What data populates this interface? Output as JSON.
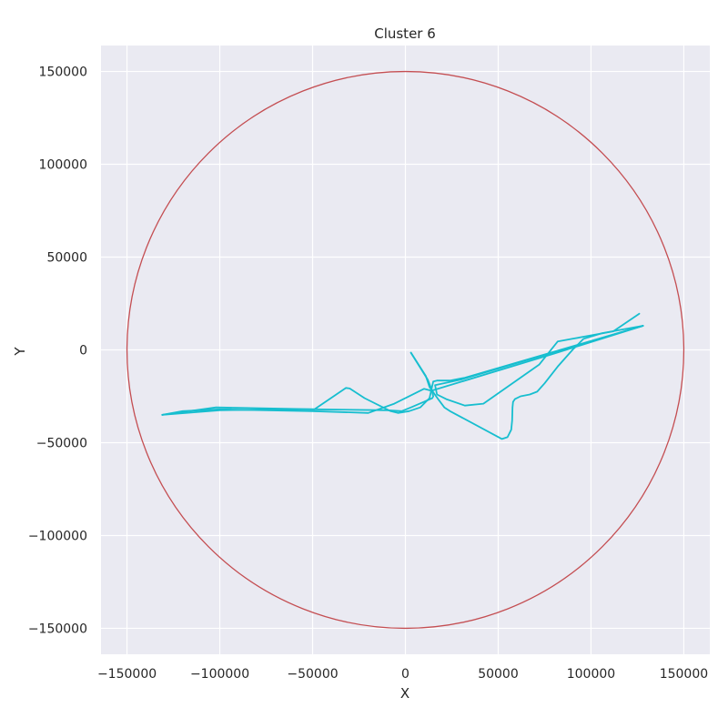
{
  "chart_data": {
    "type": "line",
    "title": "Cluster 6",
    "xlabel": "X",
    "ylabel": "Y",
    "xlim": [
      -164000,
      164000
    ],
    "ylim": [
      -164000,
      164000
    ],
    "xticks": [
      -150000,
      -100000,
      -50000,
      0,
      50000,
      100000,
      150000
    ],
    "yticks": [
      -150000,
      -100000,
      -50000,
      0,
      50000,
      100000,
      150000
    ],
    "xtick_labels": [
      "−150000",
      "−100000",
      "−50000",
      "0",
      "50000",
      "100000",
      "150000"
    ],
    "ytick_labels": [
      "−150000",
      "−100000",
      "−50000",
      "0",
      "50000",
      "100000",
      "150000"
    ],
    "grid": true,
    "colors": {
      "background": "#eaeaf2",
      "grid": "#ffffff",
      "line": "#17becf",
      "circle": "#c44e52"
    },
    "circle": {
      "cx": 0,
      "cy": 0,
      "r": 150000
    },
    "series": [
      {
        "points": [
          [
            3000,
            -1500
          ],
          [
            12000,
            -16000
          ],
          [
            14000,
            -21000
          ],
          [
            15000,
            -25000
          ],
          [
            14500,
            -26000
          ],
          [
            10000,
            -28000
          ],
          [
            3000,
            -31000
          ],
          [
            -2000,
            -33000
          ],
          [
            -10000,
            -32500
          ],
          [
            -50000,
            -32000
          ],
          [
            -60000,
            -32000
          ],
          [
            -100000,
            -32500
          ],
          [
            -131000,
            -35000
          ]
        ]
      },
      {
        "points": [
          [
            3000,
            -1500
          ],
          [
            11000,
            -14000
          ],
          [
            13000,
            -20000
          ],
          [
            18000,
            -27000
          ],
          [
            21000,
            -31000
          ],
          [
            24000,
            -33000
          ],
          [
            52000,
            -48000
          ],
          [
            55000,
            -47000
          ],
          [
            57000,
            -43000
          ],
          [
            57500,
            -38000
          ],
          [
            57700,
            -31000
          ],
          [
            58000,
            -28000
          ],
          [
            59000,
            -26500
          ],
          [
            62000,
            -25000
          ],
          [
            67000,
            -24000
          ],
          [
            71000,
            -22500
          ],
          [
            75000,
            -18000
          ],
          [
            82000,
            -9000
          ],
          [
            90000,
            0
          ],
          [
            96000,
            6000
          ],
          [
            106000,
            9000
          ],
          [
            128000,
            13000
          ]
        ]
      },
      {
        "points": [
          [
            128000,
            13000
          ],
          [
            80000,
            -2000
          ],
          [
            14000,
            -22000
          ],
          [
            10000,
            -21000
          ],
          [
            -6000,
            -29000
          ],
          [
            -20000,
            -34000
          ],
          [
            -50000,
            -33000
          ],
          [
            -100000,
            -32000
          ],
          [
            -120000,
            -33000
          ],
          [
            -131000,
            -35000
          ]
        ]
      },
      {
        "points": [
          [
            -131000,
            -35000
          ],
          [
            -102000,
            -31000
          ],
          [
            -49000,
            -32000
          ],
          [
            -32000,
            -20500
          ],
          [
            -30000,
            -20800
          ],
          [
            -22000,
            -26000
          ],
          [
            -8000,
            -33000
          ],
          [
            -4000,
            -34000
          ],
          [
            2000,
            -33000
          ],
          [
            8000,
            -31000
          ],
          [
            13000,
            -26000
          ],
          [
            15000,
            -17000
          ],
          [
            17000,
            -16500
          ],
          [
            24000,
            -16500
          ],
          [
            32000,
            -15000
          ],
          [
            128000,
            13000
          ]
        ]
      },
      {
        "points": [
          [
            128000,
            13000
          ],
          [
            30000,
            -16000
          ],
          [
            16000,
            -19000
          ],
          [
            17000,
            -24000
          ],
          [
            22000,
            -26500
          ],
          [
            32000,
            -30000
          ],
          [
            42000,
            -29000
          ],
          [
            72000,
            -8000
          ],
          [
            82000,
            4500
          ],
          [
            90000,
            6000
          ],
          [
            112000,
            10000
          ],
          [
            126000,
            19500
          ]
        ]
      }
    ]
  }
}
